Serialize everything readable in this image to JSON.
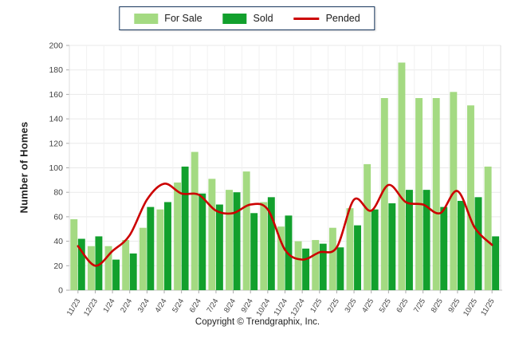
{
  "chart_data": {
    "type": "bar",
    "title": "",
    "categories": [
      "11/23",
      "12/23",
      "1/24",
      "2/24",
      "3/24",
      "4/24",
      "5/24",
      "6/24",
      "7/24",
      "8/24",
      "9/24",
      "10/24",
      "11/24",
      "12/24",
      "1/25",
      "2/25",
      "3/25",
      "4/25",
      "5/25",
      "6/25",
      "7/25",
      "8/25",
      "9/25",
      "10/25",
      "11/25"
    ],
    "series": [
      {
        "name": "For Sale",
        "type": "bar",
        "color": "#a4da82",
        "values": [
          58,
          36,
          36,
          41,
          51,
          66,
          88,
          113,
          91,
          82,
          97,
          72,
          52,
          40,
          41,
          51,
          67,
          103,
          157,
          186,
          157,
          157,
          162,
          151,
          101
        ]
      },
      {
        "name": "Sold",
        "type": "bar",
        "color": "#12a02d",
        "values": [
          42,
          44,
          25,
          30,
          68,
          72,
          101,
          79,
          70,
          80,
          63,
          76,
          61,
          34,
          38,
          35,
          53,
          66,
          71,
          82,
          82,
          68,
          73,
          76,
          44
        ]
      },
      {
        "name": "Pended",
        "type": "line",
        "color": "#cc0000",
        "values": [
          36,
          20,
          32,
          45,
          74,
          87,
          79,
          78,
          65,
          63,
          70,
          66,
          33,
          25,
          31,
          35,
          74,
          65,
          86,
          72,
          70,
          63,
          81,
          51,
          37
        ]
      }
    ],
    "xlabel": "",
    "ylabel": "Number of Homes",
    "ylim": [
      0,
      200
    ],
    "ytick_step": 20,
    "grid": true,
    "legend_position": "top-center"
  },
  "footer": {
    "copyright": "Copyright © Trendgraphix, Inc."
  }
}
